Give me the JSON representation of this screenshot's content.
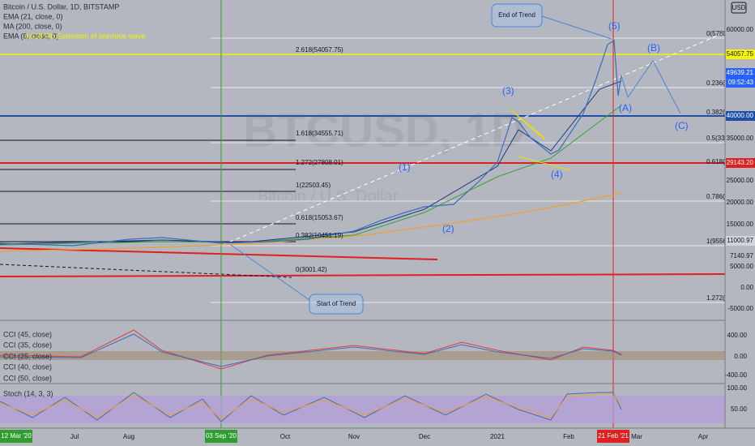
{
  "header": {
    "legend": [
      "Bitcoin / U.S. Dollar, 1D, BITSTAMP",
      "EMA (21, close, 0)",
      "MA (200, close, 0)",
      "EMA (8, close, 0)"
    ],
    "note": "4.618 Fib Extension of previous wave",
    "currency": "USD"
  },
  "watermark": {
    "symbol": "BTCUSD, 1D",
    "name": "Bitcoin / U.S. Dollar"
  },
  "fib_left": [
    "2.618(54057.75)",
    "1.618(34555.71)",
    "1.272(27808.01)",
    "1(22503.45)",
    "0.618(15053.67)",
    "0.382(10451.19)",
    "0(3001.42)"
  ],
  "fib_right": [
    "0(5780",
    "0.236(",
    "0.382(",
    "0.5(33",
    "0.618(",
    "0.786(",
    "1(9556",
    "1.272("
  ],
  "waves": [
    "(1)",
    "(2)",
    "(3)",
    "(4)",
    "(5)",
    "(A)",
    "(B)",
    "(C)"
  ],
  "callouts": [
    "End of Trend",
    "Start of Trend"
  ],
  "price_axis": [
    "60000.00",
    "35000.00",
    "25000.00",
    "20000.00",
    "15000.00",
    "7140.97",
    "5000.00",
    "0.00",
    "-5000.00"
  ],
  "price_tags": {
    "fib": "54057.75",
    "last": "49639.21",
    "countdown": "09:52:43",
    "support": "40000.00",
    "red": "29143.20",
    "low": "11000.97"
  },
  "cci": {
    "legend": [
      "CCI (45, close)",
      "CCI (35, close)",
      "CCI (25, close)",
      "CCI (40, close)",
      "CCI (50, close)"
    ],
    "axis": [
      "400.00",
      "0.00",
      "-400.00"
    ]
  },
  "stoch": {
    "legend": "Stoch (14, 3, 3)",
    "axis": [
      "100.00",
      "50.00"
    ]
  },
  "time_axis": {
    "labels": [
      "Jul",
      "Aug",
      "Oct",
      "Nov",
      "Dec",
      "2021",
      "Feb",
      "Mar",
      "Apr"
    ],
    "markers": [
      "12 Mar '20",
      "03 Sep '20",
      "21 Feb '21"
    ]
  }
}
